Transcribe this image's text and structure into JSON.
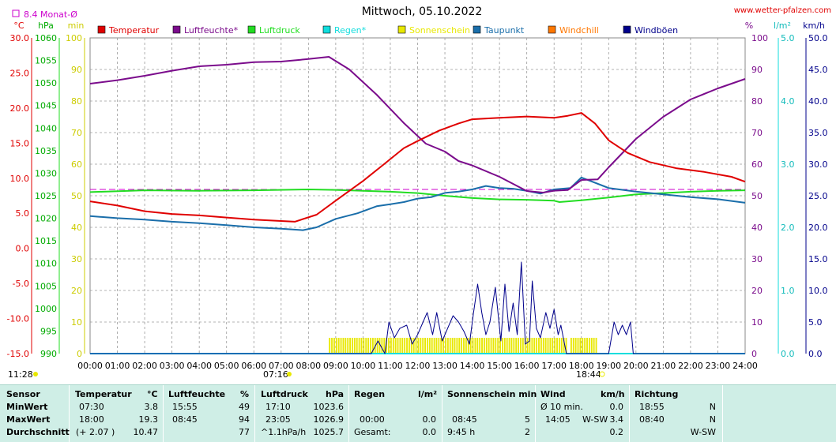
{
  "chart_data": {
    "type": "line",
    "title": "Mittwoch, 05.10.2022",
    "source": "www.wetter-pfalzen.com",
    "month_avg": "8.4 Monat-Ø",
    "axes": {
      "temp": {
        "unit": "°C",
        "range": [
          -15,
          30
        ],
        "ticks": [
          "30.0",
          "25.0",
          "20.0",
          "15.0",
          "10.0",
          "5.0",
          "0.0",
          "-5.0",
          "-10.0",
          "-15.0"
        ]
      },
      "pressure": {
        "unit": "hPa",
        "range": [
          990,
          1060
        ],
        "ticks": [
          "1060",
          "1055",
          "1050",
          "1045",
          "1040",
          "1035",
          "1030",
          "1025",
          "1020",
          "1015",
          "1010",
          "1005",
          "1000",
          "995",
          "990"
        ]
      },
      "minutes": {
        "unit": "min",
        "range": [
          0,
          100
        ],
        "ticks": [
          "100",
          "90",
          "80",
          "70",
          "60",
          "50",
          "40",
          "30",
          "20",
          "10",
          "0"
        ]
      },
      "humidity": {
        "unit": "%",
        "range": [
          0,
          100
        ],
        "ticks": [
          "100",
          "90",
          "80",
          "70",
          "60",
          "50",
          "40",
          "30",
          "20",
          "10",
          "0"
        ]
      },
      "rain": {
        "unit": "l/m²",
        "range": [
          0,
          5
        ],
        "ticks": [
          "5.0",
          "4.0",
          "3.0",
          "2.0",
          "1.0",
          "0.0"
        ]
      },
      "wind": {
        "unit": "km/h",
        "range": [
          0,
          50
        ],
        "ticks": [
          "50.0",
          "45.0",
          "40.0",
          "35.0",
          "30.0",
          "25.0",
          "20.0",
          "15.0",
          "10.0",
          "5.0",
          "0.0"
        ]
      },
      "time": {
        "ticks": [
          "00:00",
          "01:00",
          "02:00",
          "03:00",
          "04:00",
          "05:00",
          "06:00",
          "07:00",
          "08:00",
          "09:00",
          "10:00",
          "11:00",
          "12:00",
          "13:00",
          "14:00",
          "15:00",
          "16:00",
          "17:00",
          "18:00",
          "19:00",
          "20:00",
          "21:00",
          "22:00",
          "23:00",
          "24:00"
        ]
      }
    },
    "legend": [
      {
        "name": "Temperatur",
        "color": "#e00000"
      },
      {
        "name": "Luftfeuchte*",
        "color": "#7b0c8c"
      },
      {
        "name": "Luftdruck",
        "color": "#22dd22"
      },
      {
        "name": "Regen*",
        "color": "#11dddd"
      },
      {
        "name": "Sonnenschein",
        "color": "#e8e800"
      },
      {
        "name": "Taupunkt",
        "color": "#1a6eaa"
      },
      {
        "name": "Windchill",
        "color": "#ff7700"
      },
      {
        "name": "Windböen",
        "color": "#00008b"
      }
    ],
    "annotations": {
      "moon_rise": "11:28",
      "sunrise": "07:16",
      "sunset": "18:44"
    },
    "series": [
      {
        "name": "Temperatur",
        "axis": "temp",
        "color": "#e00000",
        "points": [
          [
            0,
            6.7
          ],
          [
            1,
            6.1
          ],
          [
            2,
            5.3
          ],
          [
            3,
            4.9
          ],
          [
            4,
            4.7
          ],
          [
            5,
            4.4
          ],
          [
            6,
            4.1
          ],
          [
            7,
            3.9
          ],
          [
            7.5,
            3.8
          ],
          [
            8.3,
            4.8
          ],
          [
            9,
            6.8
          ],
          [
            10,
            9.6
          ],
          [
            10.8,
            12.1
          ],
          [
            11.5,
            14.3
          ],
          [
            12,
            15.3
          ],
          [
            12.8,
            16.8
          ],
          [
            13.5,
            17.8
          ],
          [
            14,
            18.4
          ],
          [
            15,
            18.6
          ],
          [
            16,
            18.8
          ],
          [
            17,
            18.6
          ],
          [
            17.5,
            18.9
          ],
          [
            18,
            19.3
          ],
          [
            18.5,
            17.8
          ],
          [
            19,
            15.4
          ],
          [
            19.7,
            13.6
          ],
          [
            20.5,
            12.3
          ],
          [
            21.5,
            11.4
          ],
          [
            22.5,
            10.9
          ],
          [
            23.5,
            10.2
          ],
          [
            24,
            9.5
          ]
        ]
      },
      {
        "name": "Luftfeuchte*",
        "axis": "humidity",
        "color": "#7b0c8c",
        "points": [
          [
            0,
            85.5
          ],
          [
            1,
            86.6
          ],
          [
            2,
            88
          ],
          [
            3,
            89.6
          ],
          [
            4,
            91
          ],
          [
            5,
            91.5
          ],
          [
            6,
            92.3
          ],
          [
            7,
            92.5
          ],
          [
            8,
            93.3
          ],
          [
            8.75,
            94
          ],
          [
            9.5,
            90
          ],
          [
            10.5,
            82
          ],
          [
            11.5,
            73
          ],
          [
            12.3,
            66.5
          ],
          [
            13,
            64
          ],
          [
            13.5,
            61
          ],
          [
            14,
            59.6
          ],
          [
            15,
            56
          ],
          [
            16,
            51.5
          ],
          [
            16.6,
            51
          ],
          [
            17,
            51.6
          ],
          [
            17.5,
            51.8
          ],
          [
            18,
            55
          ],
          [
            18.6,
            55.2
          ],
          [
            19,
            59
          ],
          [
            20,
            68
          ],
          [
            21,
            75
          ],
          [
            22,
            80.5
          ],
          [
            23,
            84
          ],
          [
            24,
            87
          ]
        ]
      },
      {
        "name": "Luftdruck",
        "axis": "pressure",
        "color": "#22dd22",
        "points": [
          [
            0,
            1025.8
          ],
          [
            2,
            1026.2
          ],
          [
            4,
            1026.1
          ],
          [
            6,
            1026.2
          ],
          [
            8,
            1026.4
          ],
          [
            9,
            1026.3
          ],
          [
            10,
            1026.1
          ],
          [
            11,
            1025.9
          ],
          [
            12,
            1025.6
          ],
          [
            13,
            1025
          ],
          [
            14,
            1024.5
          ],
          [
            15,
            1024.2
          ],
          [
            16,
            1024.1
          ],
          [
            17,
            1023.9
          ],
          [
            17.2,
            1023.6
          ],
          [
            18,
            1024
          ],
          [
            19,
            1024.6
          ],
          [
            20,
            1025.3
          ],
          [
            21,
            1025.6
          ],
          [
            22,
            1025.9
          ],
          [
            23,
            1026.1
          ],
          [
            24,
            1026.2
          ]
        ]
      },
      {
        "name": "Taupunkt",
        "axis": "temp",
        "color": "#1a6eaa",
        "points": [
          [
            0,
            4.6
          ],
          [
            1,
            4.3
          ],
          [
            2,
            4.1
          ],
          [
            3,
            3.8
          ],
          [
            4,
            3.6
          ],
          [
            5,
            3.3
          ],
          [
            6,
            3.0
          ],
          [
            7,
            2.8
          ],
          [
            7.8,
            2.6
          ],
          [
            8.3,
            3.0
          ],
          [
            9,
            4.2
          ],
          [
            9.8,
            5.0
          ],
          [
            10.5,
            6.0
          ],
          [
            11,
            6.3
          ],
          [
            11.5,
            6.6
          ],
          [
            12,
            7.1
          ],
          [
            12.5,
            7.3
          ],
          [
            13,
            7.9
          ],
          [
            13.5,
            8.1
          ],
          [
            14,
            8.4
          ],
          [
            14.5,
            8.9
          ],
          [
            15,
            8.6
          ],
          [
            15.5,
            8.5
          ],
          [
            16,
            8.2
          ],
          [
            16.5,
            7.8
          ],
          [
            17,
            8.4
          ],
          [
            17.6,
            8.6
          ],
          [
            18,
            10.1
          ],
          [
            18.4,
            9.5
          ],
          [
            19,
            8.6
          ],
          [
            20,
            8.1
          ],
          [
            21,
            7.7
          ],
          [
            22,
            7.3
          ],
          [
            23,
            7.0
          ],
          [
            24,
            6.5
          ]
        ]
      },
      {
        "name": "Windböen",
        "axis": "wind",
        "color": "#00008b",
        "points": [
          [
            0,
            0
          ],
          [
            10.3,
            0
          ],
          [
            10.55,
            2
          ],
          [
            10.8,
            0
          ],
          [
            10.95,
            5
          ],
          [
            11.15,
            2.5
          ],
          [
            11.35,
            4
          ],
          [
            11.6,
            4.5
          ],
          [
            11.8,
            1.5
          ],
          [
            12,
            3
          ],
          [
            12.2,
            5
          ],
          [
            12.35,
            6.5
          ],
          [
            12.55,
            3
          ],
          [
            12.7,
            6.5
          ],
          [
            12.9,
            2
          ],
          [
            13.1,
            4
          ],
          [
            13.3,
            6
          ],
          [
            13.5,
            5
          ],
          [
            13.7,
            3.5
          ],
          [
            13.9,
            1.5
          ],
          [
            14.05,
            6.5
          ],
          [
            14.2,
            11
          ],
          [
            14.35,
            6.5
          ],
          [
            14.5,
            3
          ],
          [
            14.65,
            5
          ],
          [
            14.85,
            10.5
          ],
          [
            15.05,
            2
          ],
          [
            15.2,
            11
          ],
          [
            15.35,
            3.5
          ],
          [
            15.5,
            8
          ],
          [
            15.65,
            3
          ],
          [
            15.8,
            14.5
          ],
          [
            15.95,
            1.5
          ],
          [
            16.1,
            2
          ],
          [
            16.2,
            11.5
          ],
          [
            16.35,
            4
          ],
          [
            16.5,
            2.5
          ],
          [
            16.7,
            6.5
          ],
          [
            16.85,
            4
          ],
          [
            17.0,
            7
          ],
          [
            17.15,
            3
          ],
          [
            17.25,
            4.5
          ],
          [
            17.45,
            0
          ],
          [
            19.0,
            0
          ],
          [
            19.2,
            5
          ],
          [
            19.35,
            3
          ],
          [
            19.5,
            4.5
          ],
          [
            19.65,
            3
          ],
          [
            19.8,
            5
          ],
          [
            19.9,
            0
          ],
          [
            24,
            0
          ]
        ]
      }
    ],
    "sunshine_minutes": {
      "axis": "minutes",
      "color": "#e8e800",
      "bands": [
        [
          8.75,
          17.5
        ],
        [
          17.6,
          18.6
        ]
      ],
      "value": 5
    },
    "reference_line": {
      "name": "8.4 Monat-Ø",
      "axis": "temp",
      "value": 8.4,
      "color": "#cc00cc"
    }
  },
  "stats": {
    "header": {
      "sensor": "Sensor",
      "temperatur": "Temperatur",
      "temp_unit": "°C",
      "luftfeuchte": "Luftfeuchte",
      "lf_unit": "%",
      "luftdruck": "Luftdruck",
      "ld_unit": "hPa",
      "regen": "Regen",
      "regen_unit": "l/m²",
      "sonnenschein": "Sonnenschein min",
      "wind": "Wind",
      "wind_unit": "km/h",
      "richtung": "Richtung"
    },
    "min": {
      "label": "MinWert",
      "temp_time": "07:30",
      "temp_val": "3.8",
      "lf_time": "15:55",
      "lf_val": "49",
      "ld_time": "17:10",
      "ld_val": "1023.6",
      "regen_time": "",
      "regen_val": "",
      "sonne_time": "",
      "sonne_val": "",
      "wind_label": "Ø 10 min.",
      "wind_val": "0.0",
      "richt_time": "18:55",
      "richt_val": "N"
    },
    "max": {
      "label": "MaxWert",
      "temp_time": "18:00",
      "temp_val": "19.3",
      "lf_time": "08:45",
      "lf_val": "94",
      "ld_time": "23:05",
      "ld_val": "1026.9",
      "regen_time": "00:00",
      "regen_val": "0.0",
      "sonne_time": "08:45",
      "sonne_val": "5",
      "wind_time": "14:05",
      "wind_dir": "W-SW",
      "wind_val": "3.4",
      "richt_time": "08:40",
      "richt_val": "N"
    },
    "avg": {
      "label": "Durchschnitt",
      "temp_delta": "(+ 2.07 )",
      "temp_val": "10.47",
      "lf_val": "77",
      "ld_trend": "^1.1hPa/h",
      "ld_val": "1025.7",
      "regen_label": "Gesamt:",
      "regen_val": "0.0",
      "sonne_label": "9:45 h",
      "sonne_val": "2",
      "wind_val": "0.2",
      "richt_val": "W-SW"
    }
  }
}
